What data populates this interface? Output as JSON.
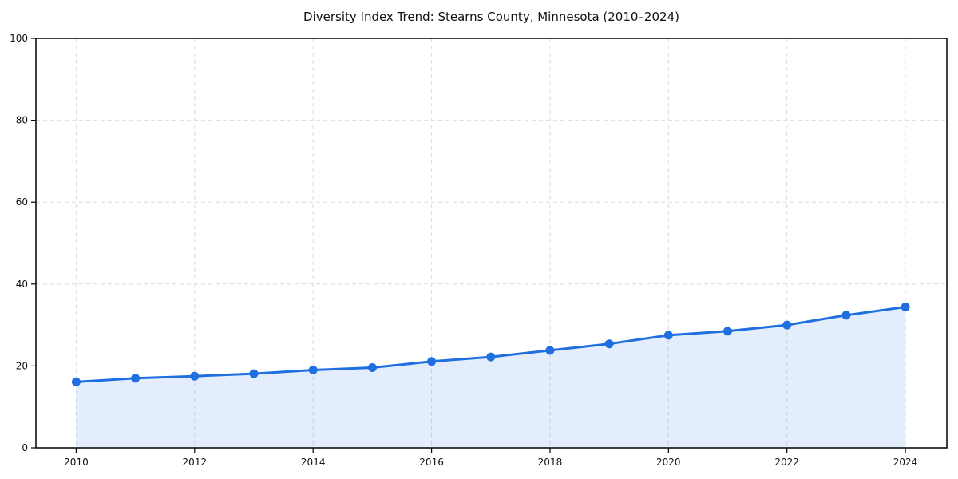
{
  "chart_data": {
    "type": "line",
    "title": "Diversity Index Trend: Stearns County, Minnesota (2010–2024)",
    "series_name": "Diversity Index",
    "x": [
      2010,
      2011,
      2012,
      2013,
      2014,
      2015,
      2016,
      2017,
      2018,
      2019,
      2020,
      2021,
      2022,
      2023,
      2024
    ],
    "values": [
      16.1,
      17.0,
      17.5,
      18.1,
      19.0,
      19.6,
      21.1,
      22.2,
      23.8,
      25.4,
      27.5,
      28.5,
      30.0,
      32.4,
      34.4
    ],
    "xlabel": "",
    "ylabel": "",
    "x_ticks": [
      2010,
      2012,
      2014,
      2016,
      2018,
      2020,
      2022,
      2024
    ],
    "y_ticks": [
      0,
      20,
      40,
      60,
      80,
      100
    ],
    "xlim": [
      2009.32,
      2024.7
    ],
    "ylim": [
      0,
      100
    ],
    "grid": true,
    "grid_style": "dashed",
    "legend_position": "none",
    "marker": "circle",
    "line_color": "#1f6fe0",
    "marker_color": "#1f6fe0",
    "fill_color": "#1f6fe0",
    "fill_opacity": 0.12,
    "background_color": "#ffffff",
    "line_width": 3,
    "marker_radius": 5.5
  }
}
